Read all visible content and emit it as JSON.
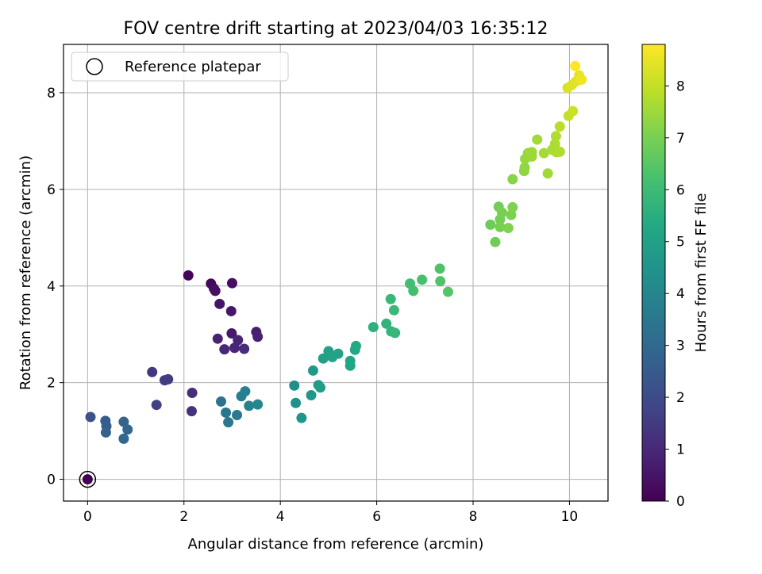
{
  "chart_data": {
    "type": "scatter",
    "title": "FOV centre drift starting at 2023/04/03 16:35:12",
    "xlabel": "Angular distance from reference (arcmin)",
    "ylabel": "Rotation from reference (arcmin)",
    "xlim": [
      -0.5,
      10.8
    ],
    "ylim": [
      -0.45,
      9.0
    ],
    "x_ticks": [
      0,
      2,
      4,
      6,
      8,
      10
    ],
    "x_tick_labels": [
      "0",
      "2",
      "4",
      "6",
      "8",
      "10"
    ],
    "y_ticks": [
      0,
      2,
      4,
      6,
      8
    ],
    "y_tick_labels": [
      "0",
      "2",
      "4",
      "6",
      "8"
    ],
    "grid": true,
    "legend": {
      "location": "upper-left",
      "entries": [
        {
          "label": "Reference platepar",
          "marker": "open-circle"
        }
      ]
    },
    "colorbar": {
      "label": "Hours from first FF file",
      "colormap": "viridis",
      "range": [
        0,
        8.8
      ],
      "ticks": [
        0,
        1,
        2,
        3,
        4,
        5,
        6,
        7,
        8
      ],
      "tick_labels": [
        "0",
        "1",
        "2",
        "3",
        "4",
        "5",
        "6",
        "7",
        "8"
      ]
    },
    "reference_point": {
      "x": 0,
      "y": 0
    },
    "points": [
      {
        "x": 0.0,
        "y": 0.0,
        "h": 0.0
      },
      {
        "x": 2.09,
        "y": 4.22,
        "h": 0.1
      },
      {
        "x": 2.56,
        "y": 4.05,
        "h": 0.2
      },
      {
        "x": 2.62,
        "y": 3.95,
        "h": 0.3
      },
      {
        "x": 3.0,
        "y": 4.06,
        "h": 0.35
      },
      {
        "x": 2.65,
        "y": 3.9,
        "h": 0.4
      },
      {
        "x": 2.74,
        "y": 3.63,
        "h": 0.5
      },
      {
        "x": 2.98,
        "y": 3.48,
        "h": 0.55
      },
      {
        "x": 2.99,
        "y": 3.02,
        "h": 0.6
      },
      {
        "x": 3.5,
        "y": 3.05,
        "h": 0.7
      },
      {
        "x": 3.53,
        "y": 2.95,
        "h": 0.8
      },
      {
        "x": 2.7,
        "y": 2.91,
        "h": 0.85
      },
      {
        "x": 3.12,
        "y": 2.88,
        "h": 0.9
      },
      {
        "x": 3.05,
        "y": 2.72,
        "h": 0.95
      },
      {
        "x": 2.84,
        "y": 2.69,
        "h": 1.0
      },
      {
        "x": 3.25,
        "y": 2.7,
        "h": 1.05
      },
      {
        "x": 2.17,
        "y": 1.79,
        "h": 1.15
      },
      {
        "x": 2.16,
        "y": 1.41,
        "h": 1.25
      },
      {
        "x": 1.34,
        "y": 2.22,
        "h": 1.4
      },
      {
        "x": 1.6,
        "y": 2.05,
        "h": 1.5
      },
      {
        "x": 1.67,
        "y": 2.07,
        "h": 1.55
      },
      {
        "x": 1.43,
        "y": 1.54,
        "h": 1.65
      },
      {
        "x": 0.06,
        "y": 1.29,
        "h": 2.2
      },
      {
        "x": 0.37,
        "y": 1.21,
        "h": 2.5
      },
      {
        "x": 0.39,
        "y": 1.1,
        "h": 2.6
      },
      {
        "x": 0.38,
        "y": 0.97,
        "h": 2.7
      },
      {
        "x": 0.75,
        "y": 1.19,
        "h": 2.8
      },
      {
        "x": 0.83,
        "y": 1.03,
        "h": 2.9
      },
      {
        "x": 0.75,
        "y": 0.84,
        "h": 2.95
      },
      {
        "x": 2.77,
        "y": 1.61,
        "h": 3.3
      },
      {
        "x": 2.87,
        "y": 1.38,
        "h": 3.4
      },
      {
        "x": 2.92,
        "y": 1.18,
        "h": 3.5
      },
      {
        "x": 3.1,
        "y": 1.33,
        "h": 3.6
      },
      {
        "x": 3.19,
        "y": 1.72,
        "h": 3.7
      },
      {
        "x": 3.27,
        "y": 1.82,
        "h": 3.8
      },
      {
        "x": 3.35,
        "y": 1.52,
        "h": 3.9
      },
      {
        "x": 3.53,
        "y": 1.55,
        "h": 4.0
      },
      {
        "x": 4.29,
        "y": 1.94,
        "h": 4.3
      },
      {
        "x": 4.32,
        "y": 1.58,
        "h": 4.4
      },
      {
        "x": 4.44,
        "y": 1.27,
        "h": 4.5
      },
      {
        "x": 4.64,
        "y": 1.74,
        "h": 4.6
      },
      {
        "x": 4.68,
        "y": 2.25,
        "h": 4.7
      },
      {
        "x": 4.79,
        "y": 1.95,
        "h": 4.8
      },
      {
        "x": 4.83,
        "y": 1.9,
        "h": 4.85
      },
      {
        "x": 4.89,
        "y": 2.5,
        "h": 4.95
      },
      {
        "x": 5.0,
        "y": 2.65,
        "h": 5.0
      },
      {
        "x": 5.08,
        "y": 2.53,
        "h": 5.05
      },
      {
        "x": 5.2,
        "y": 2.6,
        "h": 5.1
      },
      {
        "x": 5.45,
        "y": 2.45,
        "h": 5.15
      },
      {
        "x": 5.45,
        "y": 2.35,
        "h": 5.2
      },
      {
        "x": 5.55,
        "y": 2.68,
        "h": 5.25
      },
      {
        "x": 5.57,
        "y": 2.76,
        "h": 5.3
      },
      {
        "x": 5.93,
        "y": 3.15,
        "h": 5.6
      },
      {
        "x": 6.2,
        "y": 3.22,
        "h": 5.7
      },
      {
        "x": 6.3,
        "y": 3.06,
        "h": 5.75
      },
      {
        "x": 6.38,
        "y": 3.03,
        "h": 5.8
      },
      {
        "x": 6.29,
        "y": 3.73,
        "h": 5.85
      },
      {
        "x": 6.36,
        "y": 3.5,
        "h": 5.9
      },
      {
        "x": 6.69,
        "y": 4.05,
        "h": 6.1
      },
      {
        "x": 6.76,
        "y": 3.9,
        "h": 6.15
      },
      {
        "x": 6.94,
        "y": 4.13,
        "h": 6.2
      },
      {
        "x": 7.31,
        "y": 4.36,
        "h": 6.3
      },
      {
        "x": 7.32,
        "y": 4.1,
        "h": 6.35
      },
      {
        "x": 7.48,
        "y": 3.88,
        "h": 6.4
      },
      {
        "x": 8.36,
        "y": 5.27,
        "h": 6.8
      },
      {
        "x": 8.46,
        "y": 4.91,
        "h": 6.85
      },
      {
        "x": 8.53,
        "y": 5.64,
        "h": 6.9
      },
      {
        "x": 8.56,
        "y": 5.38,
        "h": 6.95
      },
      {
        "x": 8.6,
        "y": 5.52,
        "h": 7.0
      },
      {
        "x": 8.56,
        "y": 5.22,
        "h": 7.0
      },
      {
        "x": 8.79,
        "y": 5.47,
        "h": 7.05
      },
      {
        "x": 8.82,
        "y": 5.63,
        "h": 7.1
      },
      {
        "x": 8.73,
        "y": 5.2,
        "h": 7.1
      },
      {
        "x": 8.82,
        "y": 6.21,
        "h": 7.2
      },
      {
        "x": 9.06,
        "y": 6.38,
        "h": 7.3
      },
      {
        "x": 9.07,
        "y": 6.45,
        "h": 7.35
      },
      {
        "x": 9.08,
        "y": 6.63,
        "h": 7.4
      },
      {
        "x": 9.14,
        "y": 6.75,
        "h": 7.45
      },
      {
        "x": 9.22,
        "y": 6.77,
        "h": 7.5
      },
      {
        "x": 9.22,
        "y": 6.68,
        "h": 7.5
      },
      {
        "x": 9.33,
        "y": 7.03,
        "h": 7.55
      },
      {
        "x": 9.47,
        "y": 6.75,
        "h": 7.6
      },
      {
        "x": 9.55,
        "y": 6.33,
        "h": 7.55
      },
      {
        "x": 9.64,
        "y": 6.82,
        "h": 7.65
      },
      {
        "x": 9.7,
        "y": 6.94,
        "h": 7.7
      },
      {
        "x": 9.72,
        "y": 7.1,
        "h": 7.75
      },
      {
        "x": 9.73,
        "y": 6.77,
        "h": 7.7
      },
      {
        "x": 9.8,
        "y": 6.78,
        "h": 7.75
      },
      {
        "x": 9.8,
        "y": 7.3,
        "h": 7.85
      },
      {
        "x": 9.98,
        "y": 7.52,
        "h": 8.0
      },
      {
        "x": 10.07,
        "y": 7.62,
        "h": 8.1
      },
      {
        "x": 9.96,
        "y": 8.1,
        "h": 8.3
      },
      {
        "x": 10.05,
        "y": 8.16,
        "h": 8.35
      },
      {
        "x": 10.13,
        "y": 8.23,
        "h": 8.4
      },
      {
        "x": 10.2,
        "y": 8.36,
        "h": 8.5
      },
      {
        "x": 10.25,
        "y": 8.27,
        "h": 8.6
      },
      {
        "x": 10.12,
        "y": 8.55,
        "h": 8.8
      }
    ]
  }
}
